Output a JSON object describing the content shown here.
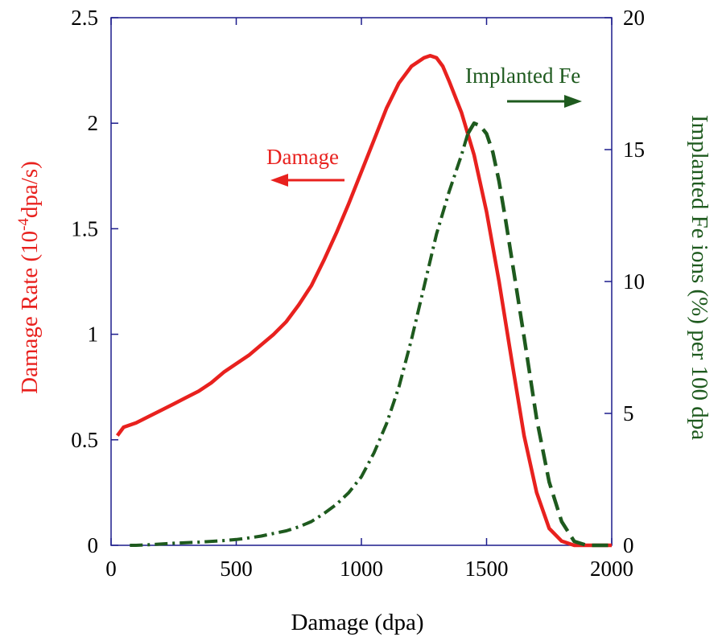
{
  "chart_data": {
    "type": "line",
    "xlabel": "Damage (dpa)",
    "ylabel_left": "Damage Rate (10",
    "ylabel_left_sup": "-4",
    "ylabel_left_end": "dpa/s)",
    "ylabel_right": "Implanted Fe ions (%) per 100 dpa",
    "xlim": [
      0,
      2000
    ],
    "ylim_left": [
      0,
      2.5
    ],
    "ylim_right": [
      0,
      20
    ],
    "x_ticks": [
      0,
      500,
      1000,
      1500,
      2000
    ],
    "x_tick_labels": [
      "0",
      "500",
      "1000",
      "1500",
      "2000"
    ],
    "y_left_ticks": [
      0,
      0.5,
      1,
      1.5,
      2,
      2.5
    ],
    "y_left_tick_labels": [
      "0",
      "0.5",
      "1",
      "1.5",
      "2",
      "2.5"
    ],
    "y_right_ticks": [
      0,
      5,
      10,
      15,
      20
    ],
    "y_right_tick_labels": [
      "0",
      "5",
      "10",
      "15",
      "20"
    ],
    "grid": false,
    "annotations": {
      "damage": "Damage",
      "implanted": "Implanted Fe"
    },
    "colors": {
      "damage": "#e8211e",
      "implanted": "#1e5a1e",
      "axis": "#1c1c8c"
    },
    "series": [
      {
        "axis": "left",
        "style": "solid",
        "x": [
          25,
          50,
          100,
          150,
          200,
          250,
          300,
          350,
          400,
          450,
          500,
          550,
          600,
          650,
          700,
          750,
          800,
          850,
          900,
          950,
          1000,
          1050,
          1100,
          1150,
          1200,
          1250,
          1275,
          1300,
          1325,
          1350,
          1400,
          1450,
          1500,
          1550,
          1600,
          1650,
          1700,
          1750,
          1800,
          1850,
          1900,
          1950,
          2000
        ],
        "y": [
          0.52,
          0.56,
          0.58,
          0.61,
          0.64,
          0.67,
          0.7,
          0.73,
          0.77,
          0.82,
          0.86,
          0.9,
          0.95,
          1.0,
          1.06,
          1.14,
          1.23,
          1.35,
          1.48,
          1.62,
          1.77,
          1.92,
          2.07,
          2.19,
          2.27,
          2.31,
          2.32,
          2.31,
          2.27,
          2.2,
          2.05,
          1.85,
          1.58,
          1.25,
          0.88,
          0.52,
          0.25,
          0.08,
          0.02,
          0.0,
          0.0,
          0.0,
          0.0
        ]
      },
      {
        "axis": "right",
        "style": "dash-dot",
        "x": [
          75,
          100,
          150,
          200,
          250,
          300,
          350,
          400,
          450,
          500,
          550,
          600,
          650,
          700,
          750,
          800,
          850,
          900,
          950,
          1000,
          1050,
          1100,
          1150,
          1200,
          1250,
          1300,
          1350,
          1400,
          1425
        ],
        "y": [
          0.0,
          0.0,
          0.02,
          0.05,
          0.08,
          0.1,
          0.12,
          0.15,
          0.18,
          0.22,
          0.28,
          0.35,
          0.45,
          0.55,
          0.7,
          0.9,
          1.2,
          1.55,
          2.0,
          2.6,
          3.5,
          4.6,
          6.0,
          7.8,
          9.8,
          11.8,
          13.4,
          14.8,
          15.6
        ]
      },
      {
        "axis": "right",
        "style": "dash",
        "x": [
          1425,
          1450,
          1475,
          1500,
          1525,
          1550,
          1575,
          1600,
          1650,
          1700,
          1750,
          1800,
          1850,
          1900,
          1950,
          2000
        ],
        "y": [
          15.6,
          16.0,
          15.9,
          15.6,
          14.9,
          13.8,
          12.4,
          10.9,
          7.9,
          4.8,
          2.4,
          0.9,
          0.15,
          0.0,
          0.0,
          0.0
        ]
      }
    ]
  }
}
